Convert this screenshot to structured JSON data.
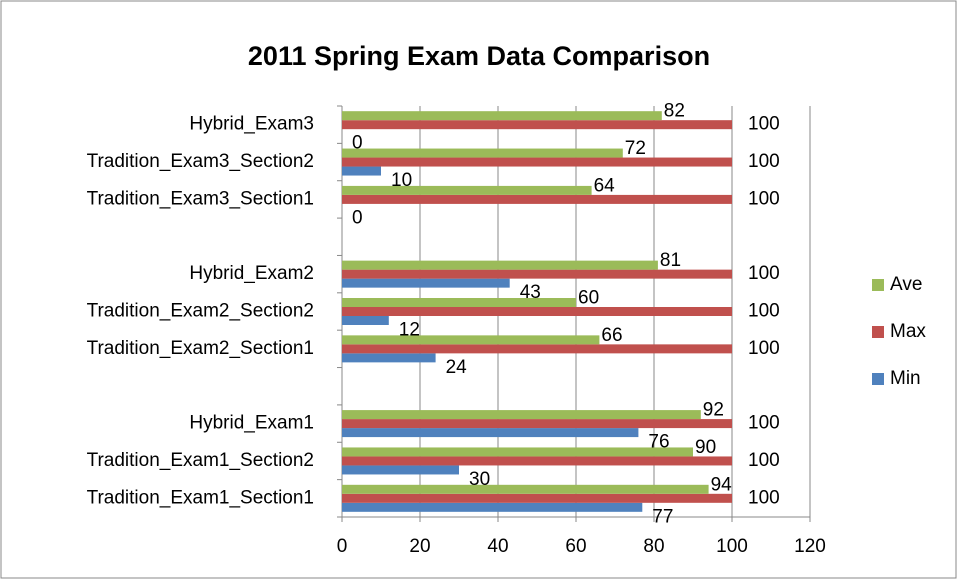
{
  "chart_data": {
    "type": "hbar",
    "title": "2011 Spring Exam Data Comparison",
    "categories": [
      "Tradition_Exam1_Section1",
      "Tradition_Exam1_Section2",
      "Hybrid_Exam1",
      null,
      "Tradition_Exam2_Section1",
      "Tradition_Exam2_Section2",
      "Hybrid_Exam2",
      null,
      "Tradition_Exam3_Section1",
      "Tradition_Exam3_Section2",
      "Hybrid_Exam3"
    ],
    "series": [
      {
        "name": "Min",
        "color": "#4f81bd",
        "values": [
          77,
          30,
          76,
          null,
          24,
          12,
          43,
          null,
          0,
          10,
          0
        ]
      },
      {
        "name": "Max",
        "color": "#c0504d",
        "values": [
          100,
          100,
          100,
          null,
          100,
          100,
          100,
          null,
          100,
          100,
          100
        ]
      },
      {
        "name": "Ave",
        "color": "#9bbb59",
        "values": [
          94,
          90,
          92,
          null,
          66,
          60,
          81,
          null,
          64,
          72,
          82
        ]
      }
    ],
    "xlim": [
      0,
      120
    ],
    "xticks": [
      0,
      20,
      40,
      60,
      80,
      100,
      120
    ],
    "grid": true
  }
}
